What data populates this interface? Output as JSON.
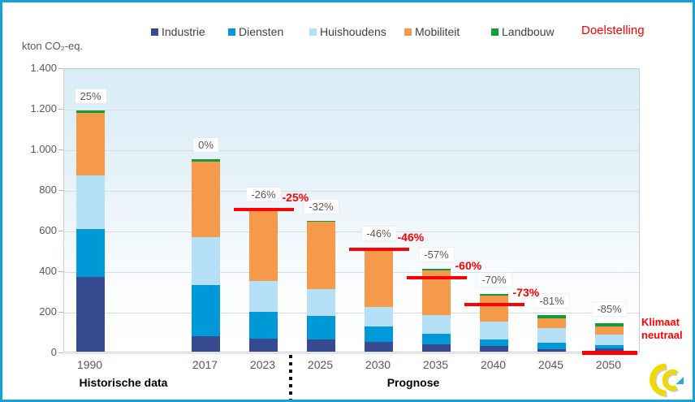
{
  "header": {
    "legend": [
      {
        "label": "Industrie",
        "color": "#374a8f",
        "x": 186
      },
      {
        "label": "Diensten",
        "color": "#0099d8",
        "x": 281
      },
      {
        "label": "Huishoudens",
        "color": "#b5e0f8",
        "x": 381
      },
      {
        "label": "Mobiliteit",
        "color": "#f49a4a",
        "x": 498
      },
      {
        "label": "Landbouw",
        "color": "#149c3c",
        "x": 605
      }
    ],
    "doelstelling_label": "Doelstelling",
    "doelstelling_color": "#ff0000"
  },
  "axis": {
    "unit_label": "kton CO₂-eq.",
    "y_tick_labels": [
      "1.400",
      "1.200",
      "1.000",
      "800",
      "600",
      "400",
      "200",
      "0"
    ],
    "group_historical": "Historische data",
    "group_forecast": "Prognose"
  },
  "chart_data": {
    "type": "bar",
    "stacked": true,
    "title": "",
    "ylabel": "kton CO₂-eq.",
    "ylim": [
      0,
      1400
    ],
    "y_step": 200,
    "grid": true,
    "legend_position": "top",
    "categories": [
      "1990",
      "2017",
      "2023",
      "2025",
      "2030",
      "2035",
      "2040",
      "2045",
      "2050"
    ],
    "series": [
      {
        "name": "Industrie",
        "color": "#374a8f",
        "values": [
          370,
          75,
          65,
          60,
          48,
          38,
          30,
          13,
          15
        ]
      },
      {
        "name": "Diensten",
        "color": "#0099d8",
        "values": [
          235,
          255,
          130,
          115,
          77,
          50,
          30,
          31,
          16
        ]
      },
      {
        "name": "Huishoudens",
        "color": "#b5e0f8",
        "values": [
          265,
          235,
          155,
          135,
          95,
          92,
          88,
          73,
          55
        ]
      },
      {
        "name": "Mobiliteit",
        "color": "#f49a4a",
        "values": [
          305,
          370,
          350,
          330,
          290,
          220,
          128,
          49,
          37
        ]
      },
      {
        "name": "Landbouw",
        "color": "#149c3c",
        "values": [
          15,
          15,
          5,
          5,
          3,
          10,
          9,
          14,
          17
        ]
      }
    ],
    "totals": [
      1190,
      950,
      705,
      645,
      513,
      410,
      285,
      180,
      140
    ],
    "bar_labels": [
      "25%",
      "0%",
      "-26%",
      "-32%",
      "-46%",
      "-57%",
      "-70%",
      "-81%",
      "-85%"
    ],
    "targets": [
      {
        "label": "-25%",
        "value": 710,
        "category": "2023",
        "placement": "line"
      },
      {
        "label": "-46%",
        "value": 513,
        "category": "2030",
        "placement": "line"
      },
      {
        "label": "-60%",
        "value": 372,
        "category": "2035",
        "placement": "line"
      },
      {
        "label": "-73%",
        "value": 240,
        "category": "2040",
        "placement": "line"
      },
      {
        "label": "Klimaat neutraal",
        "value": 0,
        "category": "2050",
        "placement": "side"
      }
    ]
  }
}
